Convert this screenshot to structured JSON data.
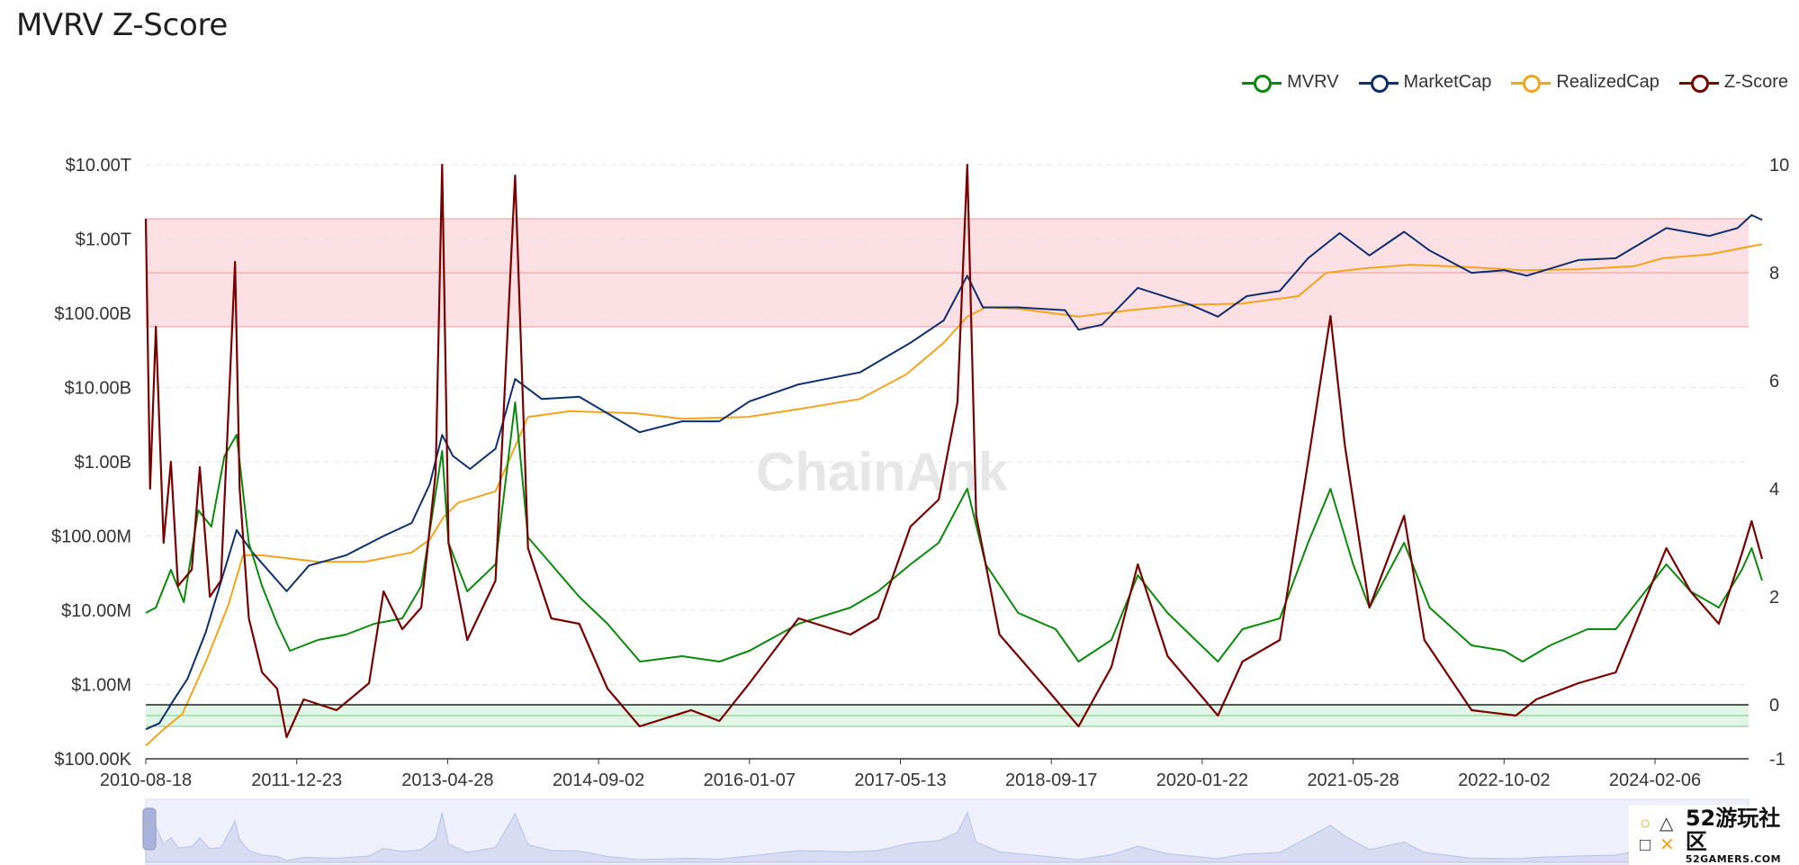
{
  "page": {
    "title": "MVRV Z-Score"
  },
  "watermark": "ChainAnk",
  "badge": {
    "main": "52游玩社区",
    "sub": "52GAMERS.COM"
  },
  "colors": {
    "mvrv": "#0a8a0a",
    "marketcap": "#0d2f6e",
    "realizedcap": "#f4a41c",
    "zscore": "#7a0000",
    "red_band": "#fbd6d9",
    "green_band": "#d8f3df"
  },
  "chart_data": {
    "type": "line",
    "title": "MVRV Z-Score",
    "legend_position": "top-right",
    "grid": true,
    "x_tick_labels": [
      "2010-08-18",
      "2011-12-23",
      "2013-04-28",
      "2014-09-02",
      "2016-01-07",
      "2017-05-13",
      "2018-09-17",
      "2020-01-22",
      "2021-05-28",
      "2022-10-02",
      "2024-02-06"
    ],
    "y_left": {
      "scale": "log",
      "range": [
        100000,
        10000000000000
      ],
      "tick_labels": [
        "$10.00T",
        "$1.00T",
        "$100.00B",
        "$10.00B",
        "$1.00B",
        "$100.00M",
        "$10.00M",
        "$1.00M",
        "$100.00K"
      ]
    },
    "y_right": {
      "scale": "linear",
      "range": [
        -1,
        10
      ],
      "tick_values": [
        10,
        8,
        6,
        4,
        2,
        0,
        -1
      ]
    },
    "bands": [
      {
        "axis": "right",
        "from": 7,
        "to": 9
      },
      {
        "axis": "right",
        "from": -0.4,
        "to": 0
      }
    ],
    "series": [
      {
        "name": "MVRV",
        "axis": "right",
        "points": [
          [
            "2010-08-18",
            1.7
          ],
          [
            "2010-09-20",
            1.8
          ],
          [
            "2010-11-08",
            2.5
          ],
          [
            "2010-12-20",
            1.9
          ],
          [
            "2011-02-05",
            3.6
          ],
          [
            "2011-03-20",
            3.3
          ],
          [
            "2011-05-01",
            4.6
          ],
          [
            "2011-06-10",
            5.0
          ],
          [
            "2011-07-20",
            3.0
          ],
          [
            "2011-09-01",
            2.2
          ],
          [
            "2011-10-20",
            1.5
          ],
          [
            "2011-12-01",
            1.0
          ],
          [
            "2012-03-01",
            1.2
          ],
          [
            "2012-06-01",
            1.3
          ],
          [
            "2012-09-01",
            1.5
          ],
          [
            "2012-12-01",
            1.6
          ],
          [
            "2013-02-01",
            2.2
          ],
          [
            "2013-04-10",
            4.7
          ],
          [
            "2013-05-01",
            3.0
          ],
          [
            "2013-07-01",
            2.1
          ],
          [
            "2013-10-01",
            2.6
          ],
          [
            "2013-12-04",
            5.6
          ],
          [
            "2014-01-15",
            3.1
          ],
          [
            "2014-04-01",
            2.6
          ],
          [
            "2014-07-01",
            2.0
          ],
          [
            "2014-10-01",
            1.5
          ],
          [
            "2015-01-15",
            0.8
          ],
          [
            "2015-06-01",
            0.9
          ],
          [
            "2015-10-01",
            0.8
          ],
          [
            "2016-01-07",
            1.0
          ],
          [
            "2016-06-15",
            1.5
          ],
          [
            "2016-12-01",
            1.8
          ],
          [
            "2017-03-01",
            2.1
          ],
          [
            "2017-06-15",
            2.6
          ],
          [
            "2017-09-15",
            3.0
          ],
          [
            "2017-12-17",
            4.0
          ],
          [
            "2018-02-15",
            2.6
          ],
          [
            "2018-06-01",
            1.7
          ],
          [
            "2018-10-01",
            1.4
          ],
          [
            "2018-12-15",
            0.8
          ],
          [
            "2019-04-01",
            1.2
          ],
          [
            "2019-06-26",
            2.4
          ],
          [
            "2019-10-01",
            1.7
          ],
          [
            "2020-03-13",
            0.8
          ],
          [
            "2020-06-01",
            1.4
          ],
          [
            "2020-10-01",
            1.6
          ],
          [
            "2021-01-01",
            3.0
          ],
          [
            "2021-03-15",
            4.0
          ],
          [
            "2021-05-28",
            2.6
          ],
          [
            "2021-07-20",
            1.8
          ],
          [
            "2021-11-10",
            3.0
          ],
          [
            "2022-02-01",
            1.8
          ],
          [
            "2022-06-18",
            1.1
          ],
          [
            "2022-10-02",
            1.0
          ],
          [
            "2022-12-01",
            0.8
          ],
          [
            "2023-03-01",
            1.1
          ],
          [
            "2023-07-01",
            1.4
          ],
          [
            "2023-10-01",
            1.4
          ],
          [
            "2024-03-14",
            2.6
          ],
          [
            "2024-06-01",
            2.1
          ],
          [
            "2024-09-01",
            1.8
          ],
          [
            "2024-11-15",
            2.5
          ],
          [
            "2024-12-17",
            2.9
          ],
          [
            "2025-01-20",
            2.3
          ]
        ]
      },
      {
        "name": "MarketCap",
        "axis": "left",
        "points": [
          [
            "2010-08-18",
            250000
          ],
          [
            "2010-10-01",
            300000
          ],
          [
            "2010-11-15",
            600000
          ],
          [
            "2011-01-01",
            1200000
          ],
          [
            "2011-03-01",
            5000000
          ],
          [
            "2011-06-10",
            120000000
          ],
          [
            "2011-08-01",
            60000000
          ],
          [
            "2011-11-20",
            18000000
          ],
          [
            "2012-02-01",
            40000000
          ],
          [
            "2012-06-01",
            55000000
          ],
          [
            "2012-10-01",
            100000000
          ],
          [
            "2013-01-01",
            150000000
          ],
          [
            "2013-03-01",
            500000000
          ],
          [
            "2013-04-10",
            2300000000
          ],
          [
            "2013-05-15",
            1200000000
          ],
          [
            "2013-07-10",
            800000000
          ],
          [
            "2013-10-01",
            1500000000
          ],
          [
            "2013-12-04",
            13000000000
          ],
          [
            "2014-03-01",
            7000000000
          ],
          [
            "2014-07-01",
            7500000000
          ],
          [
            "2015-01-14",
            2500000000
          ],
          [
            "2015-06-01",
            3500000000
          ],
          [
            "2015-10-01",
            3500000000
          ],
          [
            "2016-01-07",
            6500000000
          ],
          [
            "2016-06-15",
            11000000000
          ],
          [
            "2017-01-01",
            16000000000
          ],
          [
            "2017-06-15",
            40000000000
          ],
          [
            "2017-10-01",
            80000000000
          ],
          [
            "2017-12-17",
            320000000000
          ],
          [
            "2018-02-06",
            120000000000
          ],
          [
            "2018-06-01",
            120000000000
          ],
          [
            "2018-11-01",
            110000000000
          ],
          [
            "2018-12-15",
            60000000000
          ],
          [
            "2019-03-01",
            70000000000
          ],
          [
            "2019-06-26",
            220000000000
          ],
          [
            "2019-12-15",
            130000000000
          ],
          [
            "2020-03-13",
            90000000000
          ],
          [
            "2020-06-15",
            170000000000
          ],
          [
            "2020-10-01",
            200000000000
          ],
          [
            "2021-01-01",
            550000000000
          ],
          [
            "2021-04-14",
            1200000000000
          ],
          [
            "2021-07-20",
            600000000000
          ],
          [
            "2021-11-10",
            1250000000000
          ],
          [
            "2022-02-01",
            700000000000
          ],
          [
            "2022-06-18",
            350000000000
          ],
          [
            "2022-10-02",
            380000000000
          ],
          [
            "2022-12-15",
            320000000000
          ],
          [
            "2023-06-01",
            520000000000
          ],
          [
            "2023-10-01",
            550000000000
          ],
          [
            "2024-03-14",
            1400000000000
          ],
          [
            "2024-08-01",
            1100000000000
          ],
          [
            "2024-11-01",
            1400000000000
          ],
          [
            "2024-12-17",
            2100000000000
          ],
          [
            "2025-01-20",
            1800000000000
          ]
        ]
      },
      {
        "name": "RealizedCap",
        "axis": "left",
        "points": [
          [
            "2010-08-18",
            150000
          ],
          [
            "2010-10-15",
            250000
          ],
          [
            "2010-12-15",
            400000
          ],
          [
            "2011-03-01",
            2000000
          ],
          [
            "2011-05-15",
            12000000
          ],
          [
            "2011-07-01",
            55000000
          ],
          [
            "2011-09-01",
            55000000
          ],
          [
            "2012-03-01",
            45000000
          ],
          [
            "2012-08-01",
            45000000
          ],
          [
            "2013-01-01",
            60000000
          ],
          [
            "2013-03-01",
            90000000
          ],
          [
            "2013-04-15",
            180000000
          ],
          [
            "2013-06-01",
            280000000
          ],
          [
            "2013-10-01",
            400000000
          ],
          [
            "2013-12-01",
            1500000000
          ],
          [
            "2014-01-15",
            4000000000
          ],
          [
            "2014-06-01",
            4800000000
          ],
          [
            "2015-01-01",
            4500000000
          ],
          [
            "2015-06-01",
            3800000000
          ],
          [
            "2016-01-01",
            4000000000
          ],
          [
            "2016-06-01",
            5000000000
          ],
          [
            "2017-01-01",
            7000000000
          ],
          [
            "2017-06-01",
            15000000000
          ],
          [
            "2017-10-01",
            40000000000
          ],
          [
            "2017-12-17",
            90000000000
          ],
          [
            "2018-02-15",
            120000000000
          ],
          [
            "2018-06-01",
            115000000000
          ],
          [
            "2018-12-15",
            90000000000
          ],
          [
            "2019-06-01",
            110000000000
          ],
          [
            "2019-12-01",
            130000000000
          ],
          [
            "2020-06-01",
            135000000000
          ],
          [
            "2020-12-01",
            170000000000
          ],
          [
            "2021-03-01",
            350000000000
          ],
          [
            "2021-07-01",
            400000000000
          ],
          [
            "2021-12-01",
            450000000000
          ],
          [
            "2022-06-01",
            420000000000
          ],
          [
            "2022-12-01",
            380000000000
          ],
          [
            "2023-06-01",
            390000000000
          ],
          [
            "2023-12-01",
            430000000000
          ],
          [
            "2024-03-01",
            550000000000
          ],
          [
            "2024-08-01",
            620000000000
          ],
          [
            "2024-12-17",
            800000000000
          ],
          [
            "2025-01-20",
            850000000000
          ]
        ]
      },
      {
        "name": "Z-Score",
        "axis": "right",
        "points": [
          [
            "2010-08-18",
            9.0
          ],
          [
            "2010-09-01",
            4.0
          ],
          [
            "2010-09-20",
            7.0
          ],
          [
            "2010-10-15",
            3.0
          ],
          [
            "2010-11-08",
            4.5
          ],
          [
            "2010-12-01",
            2.2
          ],
          [
            "2011-01-15",
            2.5
          ],
          [
            "2011-02-10",
            4.4
          ],
          [
            "2011-03-15",
            2.0
          ],
          [
            "2011-04-20",
            2.3
          ],
          [
            "2011-06-05",
            8.2
          ],
          [
            "2011-06-20",
            4.0
          ],
          [
            "2011-07-20",
            1.6
          ],
          [
            "2011-09-01",
            0.6
          ],
          [
            "2011-10-20",
            0.3
          ],
          [
            "2011-11-20",
            -0.6
          ],
          [
            "2012-01-15",
            0.1
          ],
          [
            "2012-05-01",
            -0.1
          ],
          [
            "2012-08-15",
            0.4
          ],
          [
            "2012-10-01",
            2.1
          ],
          [
            "2012-12-01",
            1.4
          ],
          [
            "2013-02-01",
            1.8
          ],
          [
            "2013-03-20",
            4.3
          ],
          [
            "2013-04-10",
            10.0
          ],
          [
            "2013-05-01",
            3.0
          ],
          [
            "2013-07-01",
            1.2
          ],
          [
            "2013-10-01",
            2.3
          ],
          [
            "2013-12-04",
            9.8
          ],
          [
            "2014-01-15",
            2.9
          ],
          [
            "2014-04-01",
            1.6
          ],
          [
            "2014-07-01",
            1.5
          ],
          [
            "2014-10-01",
            0.3
          ],
          [
            "2015-01-14",
            -0.4
          ],
          [
            "2015-07-01",
            -0.1
          ],
          [
            "2015-10-01",
            -0.3
          ],
          [
            "2016-01-07",
            0.4
          ],
          [
            "2016-06-15",
            1.6
          ],
          [
            "2016-12-01",
            1.3
          ],
          [
            "2017-03-01",
            1.6
          ],
          [
            "2017-06-15",
            3.3
          ],
          [
            "2017-09-15",
            3.8
          ],
          [
            "2017-11-15",
            5.6
          ],
          [
            "2017-12-17",
            10.0
          ],
          [
            "2018-01-15",
            3.5
          ],
          [
            "2018-04-01",
            1.3
          ],
          [
            "2018-09-01",
            0.3
          ],
          [
            "2018-12-15",
            -0.4
          ],
          [
            "2019-04-01",
            0.7
          ],
          [
            "2019-06-26",
            2.6
          ],
          [
            "2019-10-01",
            0.9
          ],
          [
            "2020-03-13",
            -0.2
          ],
          [
            "2020-06-01",
            0.8
          ],
          [
            "2020-10-01",
            1.2
          ],
          [
            "2021-01-01",
            4.5
          ],
          [
            "2021-03-15",
            7.2
          ],
          [
            "2021-05-01",
            4.8
          ],
          [
            "2021-07-20",
            1.8
          ],
          [
            "2021-11-10",
            3.5
          ],
          [
            "2022-01-15",
            1.2
          ],
          [
            "2022-06-18",
            -0.1
          ],
          [
            "2022-11-09",
            -0.2
          ],
          [
            "2023-01-15",
            0.1
          ],
          [
            "2023-06-01",
            0.4
          ],
          [
            "2023-10-01",
            0.6
          ],
          [
            "2024-03-14",
            2.9
          ],
          [
            "2024-06-01",
            2.1
          ],
          [
            "2024-09-01",
            1.5
          ],
          [
            "2024-11-15",
            2.8
          ],
          [
            "2024-12-17",
            3.4
          ],
          [
            "2025-01-20",
            2.7
          ]
        ]
      }
    ]
  }
}
